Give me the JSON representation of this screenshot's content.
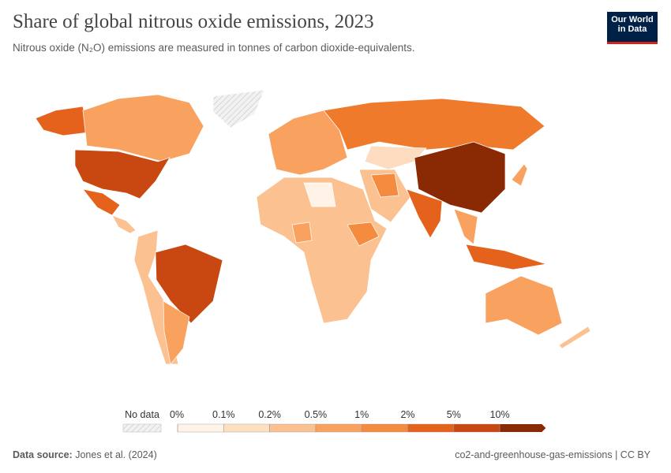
{
  "header": {
    "title": "Share of global nitrous oxide emissions, 2023",
    "subtitle": "Nitrous oxide (N₂O) emissions are measured in tonnes of carbon dioxide-equivalents.",
    "logo": [
      "Our World",
      "in Data"
    ]
  },
  "legend": {
    "no_data": "No data",
    "ticks": [
      "0%",
      "0.1%",
      "0.2%",
      "0.5%",
      "1%",
      "2%",
      "5%",
      "10%"
    ],
    "colors": [
      "#fef3e6",
      "#fde0c0",
      "#fcc190",
      "#f9a25f",
      "#f48b3f",
      "#e5621c",
      "#c94710",
      "#8a2a05"
    ]
  },
  "footer": {
    "source_label": "Data source:",
    "source": "Jones et al. (2024)",
    "right": "co2-and-greenhouse-gas-emissions | CC BY"
  }
}
